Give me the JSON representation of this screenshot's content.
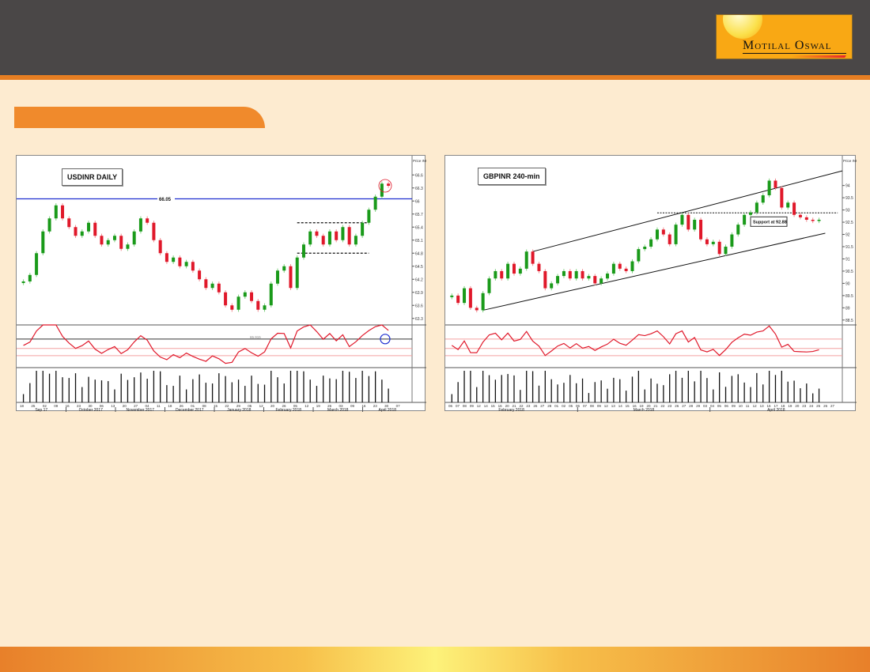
{
  "brand": {
    "logo_text": "Motilal Oswal",
    "colors": {
      "header": "#4a4747",
      "accent": "#e67e22",
      "background": "#fdebd0"
    }
  },
  "section_tab": {
    "label": ""
  },
  "chart_data": [
    {
      "type": "candlestick",
      "title": "USDINR DAILY",
      "price_axis_label": "Price INR",
      "yticks": [
        66.6,
        66.3,
        66,
        65.7,
        65.4,
        65.1,
        64.8,
        64.5,
        64.2,
        63.9,
        63.6,
        63.3
      ],
      "ylim": [
        63.15,
        66.75
      ],
      "x_day_ticks": [
        "18",
        "25",
        "02",
        "09",
        "16",
        "23",
        "30",
        "06",
        "13",
        "20",
        "27",
        "04",
        "11",
        "18",
        "26",
        "01",
        "08",
        "15",
        "22",
        "29",
        "05",
        "12",
        "20",
        "26",
        "05",
        "12",
        "19",
        "26",
        "03",
        "09",
        "16",
        "23",
        "30",
        "07"
      ],
      "x_month_labels": [
        "Sep 17",
        "October 2017",
        "November 2017",
        "December 2017",
        "January 2018",
        "February 2018",
        "March 2018",
        "April 2018"
      ],
      "closes": [
        64.15,
        64.3,
        64.8,
        65.3,
        65.6,
        65.9,
        65.6,
        65.4,
        65.2,
        65.3,
        65.5,
        65.2,
        65.0,
        65.1,
        65.2,
        64.9,
        65.0,
        65.3,
        65.6,
        65.5,
        65.1,
        64.8,
        64.6,
        64.7,
        64.5,
        64.6,
        64.4,
        64.2,
        64.0,
        64.1,
        63.9,
        63.6,
        63.5,
        63.8,
        63.9,
        63.7,
        63.5,
        63.6,
        64.1,
        64.4,
        64.5,
        64.0,
        64.7,
        65.0,
        65.3,
        65.2,
        65.0,
        65.3,
        65.1,
        65.4,
        65.0,
        65.2,
        65.5,
        65.8,
        66.1,
        66.4,
        66.35
      ],
      "resistance": {
        "value": 66.05,
        "label": "66.05",
        "color": "#1f2fd0"
      },
      "range_box": {
        "upper": 65.5,
        "lower": 64.8,
        "from_index": 42,
        "to_index": 53
      },
      "rsi_label": "65.915",
      "highlight": "breakout circled"
    },
    {
      "type": "candlestick",
      "title": "GBPINR 240-min",
      "price_axis_label": "Price INR",
      "yticks": [
        94,
        93.5,
        93,
        92.5,
        92,
        91.5,
        91,
        90.5,
        90,
        89.5,
        89,
        88.5
      ],
      "ylim": [
        88.3,
        94.7
      ],
      "x_day_ticks": [
        "06",
        "07",
        "08",
        "09",
        "12",
        "14",
        "15",
        "16",
        "20",
        "21",
        "22",
        "23",
        "26",
        "27",
        "28",
        "01",
        "02",
        "05",
        "06",
        "07",
        "08",
        "09",
        "12",
        "13",
        "14",
        "15",
        "16",
        "19",
        "20",
        "21",
        "22",
        "23",
        "26",
        "27",
        "28",
        "29",
        "03",
        "04",
        "05",
        "06",
        "09",
        "10",
        "11",
        "12",
        "13",
        "16",
        "17",
        "18",
        "19",
        "20",
        "23",
        "24",
        "25",
        "26",
        "27"
      ],
      "x_month_labels": [
        "February 2018",
        "March 2018",
        "April 2018"
      ],
      "closes": [
        89.5,
        89.2,
        89.8,
        89.0,
        88.9,
        89.6,
        90.2,
        90.5,
        90.2,
        90.8,
        90.4,
        90.6,
        91.3,
        90.8,
        90.5,
        89.8,
        90.0,
        90.3,
        90.5,
        90.2,
        90.5,
        90.2,
        90.3,
        90.0,
        90.2,
        90.4,
        90.8,
        90.6,
        90.5,
        90.9,
        91.4,
        91.5,
        91.8,
        92.2,
        92.0,
        91.6,
        92.4,
        92.8,
        92.2,
        92.6,
        91.8,
        91.6,
        91.7,
        91.2,
        91.5,
        92.0,
        92.4,
        92.8,
        92.9,
        93.3,
        93.6,
        94.2,
        93.9,
        93.1,
        93.3,
        92.8,
        92.7,
        92.6,
        92.55,
        92.6
      ],
      "channel": {
        "lower": [
          [
            5,
            88.9
          ],
          [
            60,
            92.05
          ]
        ],
        "upper": [
          [
            13,
            91.3
          ],
          [
            64,
            94.6
          ]
        ]
      },
      "support": {
        "value": 92.88,
        "label": "Support at 92.88"
      }
    }
  ]
}
